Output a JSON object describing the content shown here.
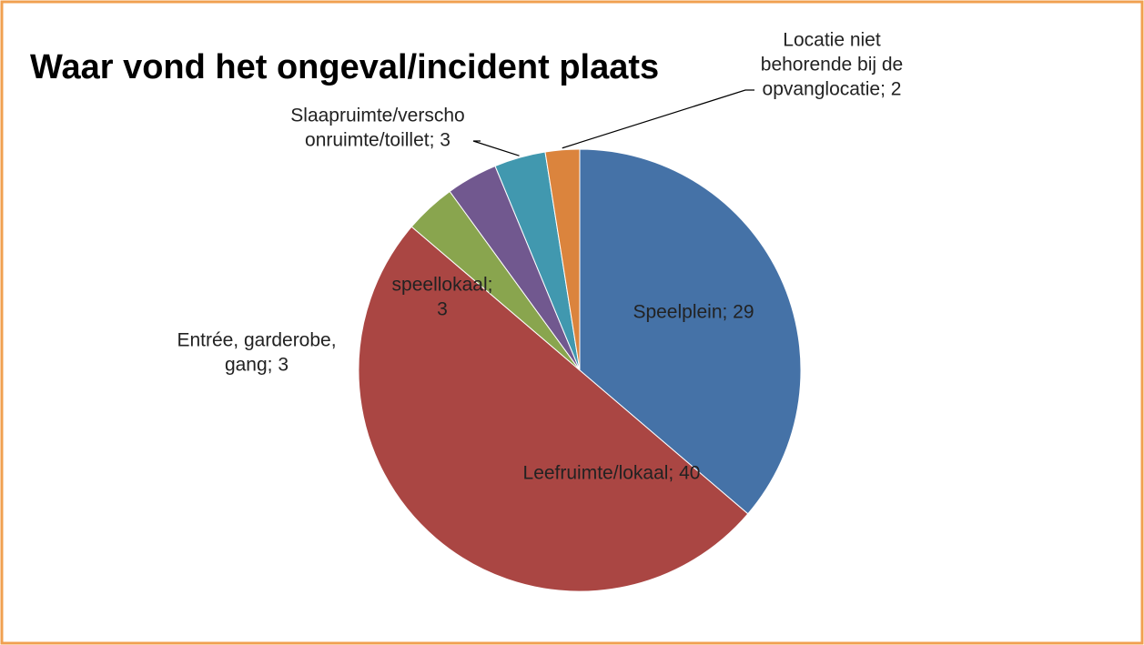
{
  "chart_data": {
    "type": "pie",
    "title": "Waar vond het ongeval/incident plaats",
    "values": [
      29,
      40,
      3,
      3,
      3,
      2
    ],
    "value_labels": [
      [
        "Speelplein; 29"
      ],
      [
        "Leefruimte/lokaal; 40"
      ],
      [
        "Entrée, garderobe,",
        "gang; 3"
      ],
      [
        "speellokaal;",
        "3"
      ],
      [
        "Slaapruimte/verscho",
        "onruimte/toillet; 3"
      ],
      [
        "Locatie niet",
        "behorende bij de",
        "opvanglocatie; 2"
      ]
    ],
    "colors": [
      "#4572a7",
      "#aa4643",
      "#89a54e",
      "#71588f",
      "#4198af",
      "#db843d"
    ]
  }
}
